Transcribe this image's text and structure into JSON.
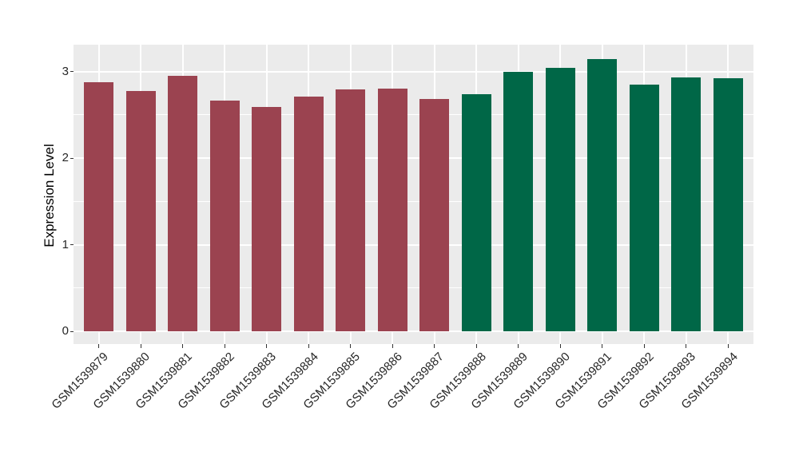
{
  "chart_data": {
    "type": "bar",
    "title": "",
    "xlabel": "",
    "ylabel": "Expression Level",
    "categories": [
      "GSM1539879",
      "GSM1539880",
      "GSM1539881",
      "GSM1539882",
      "GSM1539883",
      "GSM1539884",
      "GSM1539885",
      "GSM1539886",
      "GSM1539887",
      "GSM1539888",
      "GSM1539889",
      "GSM1539890",
      "GSM1539891",
      "GSM1539892",
      "GSM1539893",
      "GSM1539894"
    ],
    "values": [
      2.88,
      2.77,
      2.95,
      2.66,
      2.59,
      2.71,
      2.79,
      2.8,
      2.68,
      2.74,
      3.0,
      3.04,
      3.14,
      2.85,
      2.93,
      2.92
    ],
    "groups": [
      "group1",
      "group1",
      "group1",
      "group1",
      "group1",
      "group1",
      "group1",
      "group1",
      "group1",
      "group2",
      "group2",
      "group2",
      "group2",
      "group2",
      "group2",
      "group2"
    ],
    "group_colors": {
      "group1": "#9B4350",
      "group2": "#006747"
    },
    "yticks": [
      0,
      1,
      2,
      3
    ],
    "ytick_labels": [
      "0",
      "1",
      "2",
      "3"
    ],
    "minor_yticks": [
      0.5,
      1.5,
      2.5
    ],
    "ylim": [
      0,
      3.31
    ],
    "bar_width_fraction": 0.7,
    "grid": true,
    "legend_position": "none",
    "panel_background": "#EBEBEB",
    "grid_color": "#FFFFFF",
    "outer_background": "#FFFFFF",
    "axis_text_color": "#262626",
    "tick_mark_color": "#333333"
  }
}
